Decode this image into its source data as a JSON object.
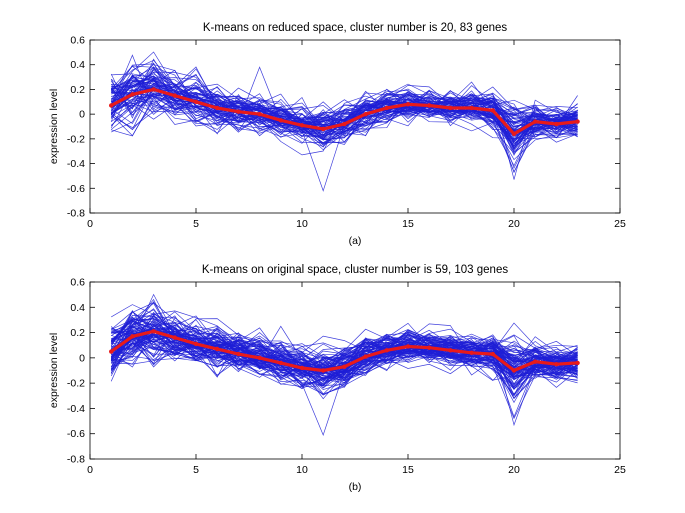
{
  "chart_data": [
    {
      "type": "line",
      "title": "K-means on reduced space, cluster number is 20, 83 genes",
      "xlabel": "(a)",
      "ylabel": "expression level",
      "xlim": [
        0,
        25
      ],
      "ylim": [
        -0.8,
        0.6
      ],
      "xticks": [
        0,
        5,
        10,
        15,
        20,
        25
      ],
      "yticks": [
        -0.8,
        -0.6,
        -0.4,
        -0.2,
        0,
        0.2,
        0.4,
        0.6
      ],
      "grid": false,
      "gene_count": 83,
      "colors": {
        "genes": "#1f1fd6",
        "centroid": "#e81a1a"
      },
      "x": [
        1,
        2,
        3,
        4,
        5,
        6,
        7,
        8,
        9,
        10,
        11,
        12,
        13,
        14,
        15,
        16,
        17,
        18,
        19,
        20,
        21,
        22,
        23
      ],
      "centroid": [
        0.07,
        0.16,
        0.2,
        0.15,
        0.1,
        0.05,
        0.02,
        0.0,
        -0.05,
        -0.09,
        -0.12,
        -0.08,
        0.0,
        0.05,
        0.08,
        0.07,
        0.05,
        0.05,
        0.03,
        -0.16,
        -0.06,
        -0.08,
        -0.06
      ],
      "spread": [
        0.12,
        0.13,
        0.12,
        0.1,
        0.09,
        0.08,
        0.08,
        0.08,
        0.08,
        0.08,
        0.1,
        0.09,
        0.08,
        0.07,
        0.07,
        0.07,
        0.07,
        0.07,
        0.08,
        0.15,
        0.08,
        0.07,
        0.07
      ],
      "outliers": [
        {
          "x": 8,
          "y": 0.38
        },
        {
          "x": 11,
          "y": -0.62
        },
        {
          "x": 20,
          "y": -0.53
        }
      ]
    },
    {
      "type": "line",
      "title": "K-means on original space, cluster number is 59, 103 genes",
      "xlabel": "(b)",
      "ylabel": "expression level",
      "xlim": [
        0,
        25
      ],
      "ylim": [
        -0.8,
        0.6
      ],
      "xticks": [
        0,
        5,
        10,
        15,
        20,
        25
      ],
      "yticks": [
        -0.8,
        -0.6,
        -0.4,
        -0.2,
        0,
        0.2,
        0.4,
        0.6
      ],
      "grid": false,
      "gene_count": 103,
      "colors": {
        "genes": "#1f1fd6",
        "centroid": "#e81a1a"
      },
      "x": [
        1,
        2,
        3,
        4,
        5,
        6,
        7,
        8,
        9,
        10,
        11,
        12,
        13,
        14,
        15,
        16,
        17,
        18,
        19,
        20,
        21,
        22,
        23
      ],
      "centroid": [
        0.05,
        0.17,
        0.21,
        0.16,
        0.11,
        0.07,
        0.03,
        0.0,
        -0.04,
        -0.08,
        -0.1,
        -0.07,
        0.01,
        0.06,
        0.09,
        0.08,
        0.06,
        0.04,
        0.03,
        -0.1,
        -0.03,
        -0.05,
        -0.04
      ],
      "spread": [
        0.12,
        0.13,
        0.12,
        0.1,
        0.09,
        0.09,
        0.09,
        0.09,
        0.08,
        0.08,
        0.1,
        0.09,
        0.08,
        0.07,
        0.07,
        0.07,
        0.07,
        0.07,
        0.08,
        0.14,
        0.08,
        0.07,
        0.07
      ],
      "outliers": [
        {
          "x": 8,
          "y": 0.2
        },
        {
          "x": 9,
          "y": 0.25
        },
        {
          "x": 11,
          "y": -0.61
        },
        {
          "x": 20,
          "y": -0.53
        }
      ]
    }
  ]
}
